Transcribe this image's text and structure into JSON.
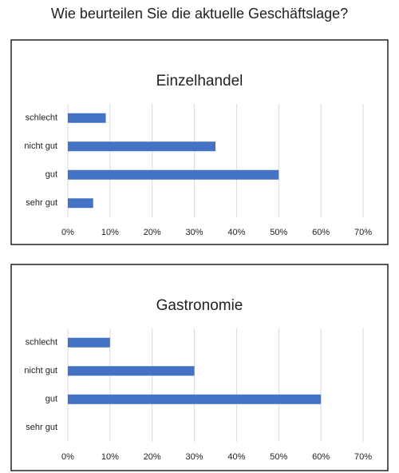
{
  "title": "Wie beurteilen Sie die aktuelle Geschäftslage?",
  "chart_data": [
    {
      "type": "bar",
      "orientation": "horizontal",
      "title": "Einzelhandel",
      "categories": [
        "schlecht",
        "nicht gut",
        "gut",
        "sehr gut"
      ],
      "values": [
        9,
        35,
        50,
        6
      ],
      "color": "#4472c4",
      "xlim": [
        0,
        70
      ],
      "xticks": [
        {
          "value": 0,
          "label": "0%"
        },
        {
          "value": 10,
          "label": "10%"
        },
        {
          "value": 20,
          "label": "20%"
        },
        {
          "value": 30,
          "label": "30%"
        },
        {
          "value": 40,
          "label": "40%"
        },
        {
          "value": 50,
          "label": "50%"
        },
        {
          "value": 60,
          "label": "60%"
        },
        {
          "value": 70,
          "label": "70%"
        }
      ],
      "grid": true
    },
    {
      "type": "bar",
      "orientation": "horizontal",
      "title": "Gastronomie",
      "categories": [
        "schlecht",
        "nicht gut",
        "gut",
        "sehr gut"
      ],
      "values": [
        10,
        30,
        60,
        0
      ],
      "color": "#4472c4",
      "xlim": [
        0,
        70
      ],
      "xticks": [
        {
          "value": 0,
          "label": "0%"
        },
        {
          "value": 10,
          "label": "10%"
        },
        {
          "value": 20,
          "label": "20%"
        },
        {
          "value": 30,
          "label": "30%"
        },
        {
          "value": 40,
          "label": "40%"
        },
        {
          "value": 50,
          "label": "50%"
        },
        {
          "value": 60,
          "label": "60%"
        },
        {
          "value": 70,
          "label": "70%"
        }
      ],
      "grid": true
    }
  ]
}
